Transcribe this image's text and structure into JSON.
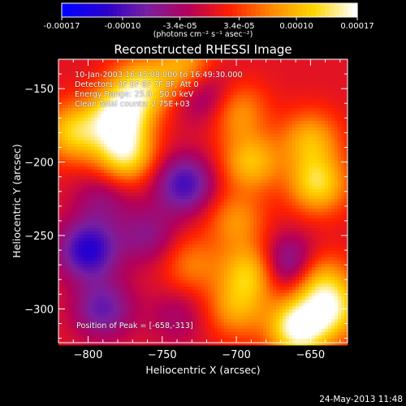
{
  "chart_data": {
    "type": "heatmap",
    "title": "Reconstructed RHESSI Image",
    "xlabel": "Heliocentric X (arcsec)",
    "ylabel": "Heliocentric Y (arcsec)",
    "xlim": [
      -820,
      -625
    ],
    "ylim": [
      -323,
      -130
    ],
    "x_ticks": [
      -800,
      -750,
      -700,
      -650
    ],
    "y_ticks": [
      -150,
      -200,
      -250,
      -300
    ],
    "colorbar": {
      "range": [
        -0.00017,
        0.00017
      ],
      "ticks": [
        "-0.00017",
        "-0.00010",
        "-3.4e-05",
        "3.4e-05",
        "0.00010",
        "0.00017"
      ],
      "unit_label": "(photons cm⁻² s⁻¹ asec⁻²)",
      "colormap": [
        "#0000ff",
        "#2a00cc",
        "#7a1fa0",
        "#b4005a",
        "#ff2000",
        "#ff8a00",
        "#ffd600",
        "#ffffff"
      ]
    },
    "annotations": [
      "10-Jan-2003 16:45:08.000 to 16:49:30.000",
      "Detectors: 4F 5F 6F 7F 8F, Att 0",
      "Energy Range: 25.0 - 50.0 keV",
      "Clean    Total counts: 2.75E+03"
    ],
    "peak_label": "Position of Peak = [-658,-313]",
    "peak": [
      -658,
      -313
    ],
    "features": [
      {
        "x": -765,
        "y": -150,
        "value": 0.00012
      },
      {
        "x": -780,
        "y": -170,
        "value": 0.00015
      },
      {
        "x": -775,
        "y": -195,
        "value": 0.00013
      },
      {
        "x": -810,
        "y": -180,
        "value": 0.00011
      },
      {
        "x": -735,
        "y": -135,
        "value": 9e-05
      },
      {
        "x": -700,
        "y": -165,
        "value": 8e-05
      },
      {
        "x": -690,
        "y": -200,
        "value": 0.0001
      },
      {
        "x": -650,
        "y": -185,
        "value": 9e-05
      },
      {
        "x": -645,
        "y": -215,
        "value": 0.00012
      },
      {
        "x": -700,
        "y": -240,
        "value": 7e-05
      },
      {
        "x": -730,
        "y": -270,
        "value": 6e-05
      },
      {
        "x": -760,
        "y": -250,
        "value": -6e-05
      },
      {
        "x": -800,
        "y": -260,
        "value": -0.00013
      },
      {
        "x": -790,
        "y": -300,
        "value": -9e-05
      },
      {
        "x": -740,
        "y": -305,
        "value": -4e-05
      },
      {
        "x": -700,
        "y": -300,
        "value": 8e-05
      },
      {
        "x": -690,
        "y": -275,
        "value": 0.00011
      },
      {
        "x": -645,
        "y": -280,
        "value": 9e-05
      },
      {
        "x": -635,
        "y": -300,
        "value": 0.00012
      },
      {
        "x": -658,
        "y": -313,
        "value": 0.00017
      },
      {
        "x": -665,
        "y": -270,
        "value": -0.0001
      },
      {
        "x": -735,
        "y": -215,
        "value": -0.00011
      },
      {
        "x": -790,
        "y": -225,
        "value": -5e-05
      },
      {
        "x": -720,
        "y": -155,
        "value": -7e-05
      }
    ]
  },
  "footer": {
    "timestamp": "24-May-2013 11:48"
  }
}
